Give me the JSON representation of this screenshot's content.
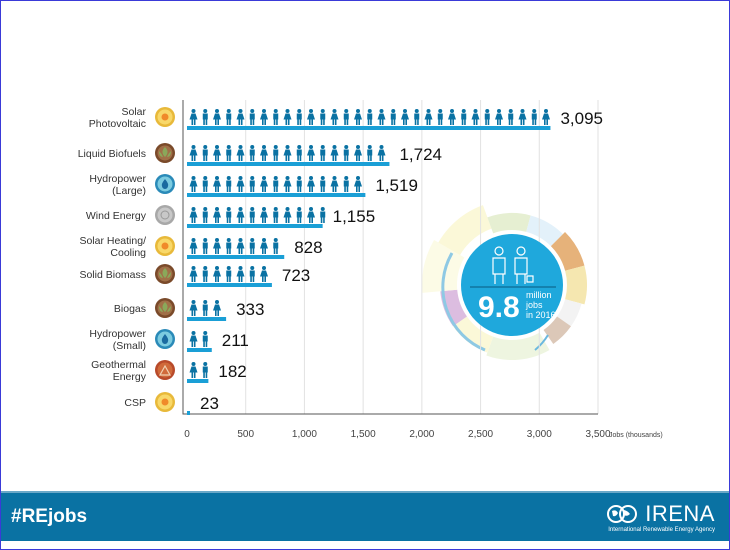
{
  "chart_data": {
    "type": "bar",
    "title": "",
    "xlabel": "Jobs (thousands)",
    "ylabel": "",
    "orientation": "horizontal",
    "xlim": [
      0,
      3500
    ],
    "grid": true,
    "xticks": [
      "0",
      "500",
      "1,000",
      "1,500",
      "2,000",
      "2,500",
      "3,000",
      "3,500"
    ],
    "categories": [
      "Solar Photovoltaic",
      "Liquid Biofuels",
      "Hydropower (Large)",
      "Wind Energy",
      "Solar Heating/ Cooling",
      "Solid Biomass",
      "Biogas",
      "Hydropower (Small)",
      "Geothermal Energy",
      "CSP"
    ],
    "category_lines": [
      [
        "Solar",
        "Photovoltaic"
      ],
      [
        "Liquid Biofuels"
      ],
      [
        "Hydropower",
        "(Large)"
      ],
      [
        "Wind Energy"
      ],
      [
        "Solar Heating/",
        "Cooling"
      ],
      [
        "Solid Biomass"
      ],
      [
        "Biogas"
      ],
      [
        "Hydropower",
        "(Small)"
      ],
      [
        "Geothermal",
        "Energy"
      ],
      [
        "CSP"
      ]
    ],
    "values": [
      3095,
      1724,
      1519,
      1155,
      828,
      723,
      333,
      211,
      182,
      23
    ],
    "value_labels": [
      "3,095",
      "1,724",
      "1,519",
      "1,155",
      "828",
      "723",
      "333",
      "211",
      "182",
      "23"
    ],
    "icons": [
      "sun",
      "leaf",
      "water-drop",
      "wind",
      "sun",
      "leaf",
      "leaf",
      "water-drop",
      "volcano",
      "sun"
    ],
    "icon_colors": [
      "#e8b93a",
      "#7a4a2a",
      "#2a8ab8",
      "#a8a8a8",
      "#e8b93a",
      "#7a4a2a",
      "#7a4a2a",
      "#2a8ab8",
      "#b84a2a",
      "#e8b93a"
    ],
    "bar_color": "#1a9fd6",
    "person_color": "#0a72a3",
    "annotation": {
      "big": "9.8",
      "line1": "million",
      "line2": "jobs",
      "line3": "in 2016"
    }
  },
  "footer": {
    "hashtag": "#REjobs",
    "logo_name": "IRENA",
    "logo_sub": "International Renewable Energy Agency"
  }
}
